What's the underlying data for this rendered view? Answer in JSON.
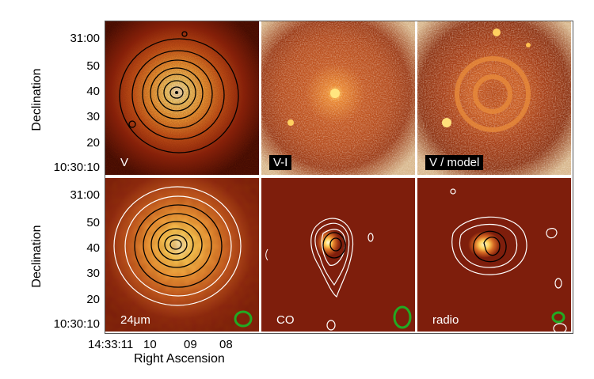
{
  "panels": {
    "v": {
      "label": "V"
    },
    "vi": {
      "label": "V-I"
    },
    "vmodel": {
      "label": "V / model"
    },
    "mips": {
      "label": "24μm"
    },
    "co": {
      "label": "CO"
    },
    "radio": {
      "label": "radio"
    }
  },
  "axes": {
    "ylabel_top": "Declination",
    "ylabel_bottom": "Declination",
    "yticks_top": [
      "31:00",
      "50",
      "40",
      "30",
      "20",
      "10:30:10"
    ],
    "yticks_bottom": [
      "31:00",
      "50",
      "40",
      "30",
      "20",
      "10:30:10"
    ],
    "xticks": [
      "14:33:11",
      "10",
      "09",
      "08"
    ],
    "xlabel": "Right Ascension"
  },
  "colors": {
    "beam": "#22aa22",
    "contour_dark": "#000000",
    "contour_light": "#ffffff"
  }
}
